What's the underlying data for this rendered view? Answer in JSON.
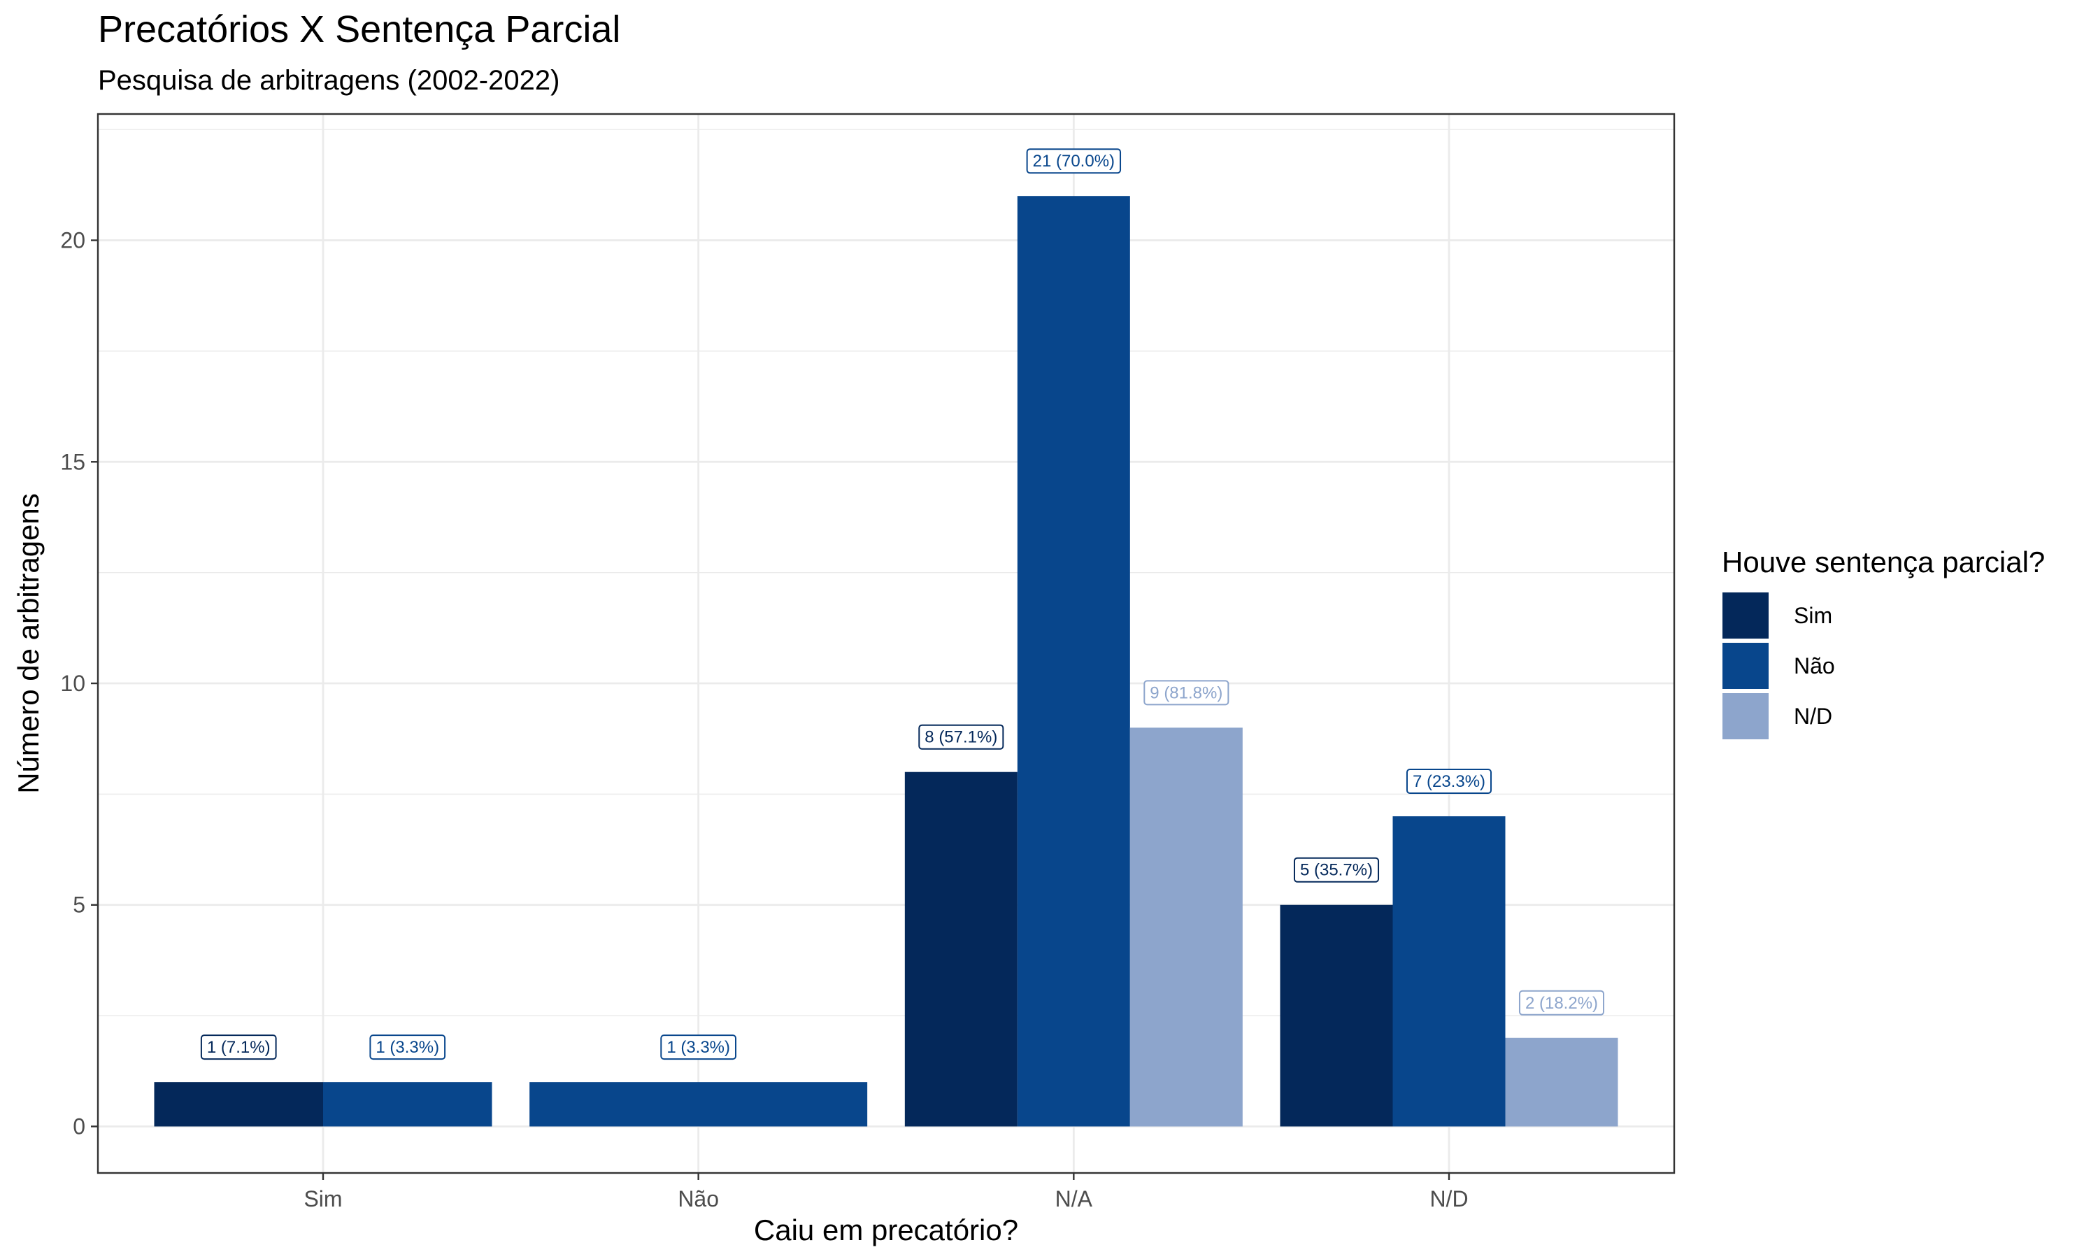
{
  "chart_data": {
    "type": "bar",
    "title": "Precatórios X Sentença Parcial",
    "subtitle": "Pesquisa de arbitragens (2002-2022)",
    "xlabel": "Caiu em precatório?",
    "ylabel": "Número de arbitragens",
    "categories": [
      "Sim",
      "Não",
      "N/A",
      "N/D"
    ],
    "y_ticks": [
      "0",
      "5",
      "10",
      "15",
      "20"
    ],
    "ylim": [
      -1.05,
      22.85
    ],
    "grid": true,
    "legend_title": "Houve sentença parcial?",
    "legend_position": "right",
    "series": [
      {
        "name": "Sim",
        "color": "#04285A",
        "values": [
          1,
          null,
          8,
          5
        ],
        "labels": [
          "1 (7.1%)",
          null,
          "8 (57.1%)",
          "5 (35.7%)"
        ]
      },
      {
        "name": "Não",
        "color": "#08468C",
        "values": [
          1,
          1,
          21,
          7
        ],
        "labels": [
          "1 (3.3%)",
          "1 (3.3%)",
          "21 (70.0%)",
          "7 (23.3%)"
        ]
      },
      {
        "name": "N/D",
        "color": "#8DA5CC",
        "values": [
          null,
          null,
          9,
          2
        ],
        "labels": [
          null,
          null,
          "9 (81.8%)",
          "2 (18.2%)"
        ]
      }
    ]
  }
}
